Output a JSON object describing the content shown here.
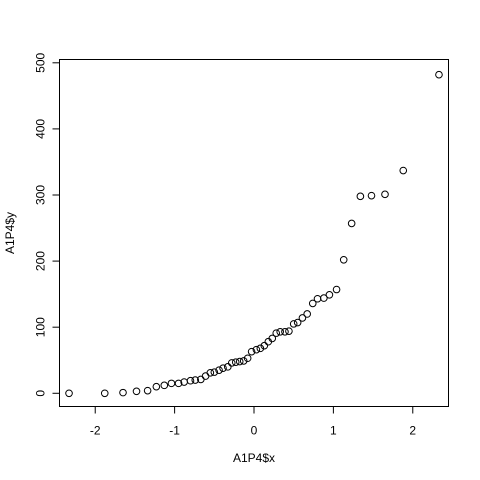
{
  "chart_data": {
    "type": "scatter",
    "title": "",
    "xlabel": "A1P4$x",
    "ylabel": "A1P4$y",
    "xlim": [
      -2.45,
      2.45
    ],
    "ylim": [
      -20,
      505
    ],
    "xticks": [
      -2,
      -1,
      0,
      1,
      2
    ],
    "xtick_labels": [
      "-2",
      "-1",
      "0",
      "1",
      "2"
    ],
    "yticks": [
      0,
      100,
      200,
      300,
      400,
      500
    ],
    "ytick_labels": [
      "0",
      "100",
      "200",
      "300",
      "400",
      "500"
    ],
    "grid": false,
    "points": [
      {
        "x": -2.33,
        "y": 0
      },
      {
        "x": -1.88,
        "y": 0
      },
      {
        "x": -1.65,
        "y": 1
      },
      {
        "x": -1.48,
        "y": 3
      },
      {
        "x": -1.34,
        "y": 4
      },
      {
        "x": -1.23,
        "y": 10
      },
      {
        "x": -1.13,
        "y": 12
      },
      {
        "x": -1.04,
        "y": 15
      },
      {
        "x": -0.95,
        "y": 15
      },
      {
        "x": -0.88,
        "y": 17
      },
      {
        "x": -0.8,
        "y": 19
      },
      {
        "x": -0.74,
        "y": 20
      },
      {
        "x": -0.67,
        "y": 21
      },
      {
        "x": -0.61,
        "y": 26
      },
      {
        "x": -0.55,
        "y": 31
      },
      {
        "x": -0.5,
        "y": 32
      },
      {
        "x": -0.44,
        "y": 35
      },
      {
        "x": -0.39,
        "y": 38
      },
      {
        "x": -0.33,
        "y": 40
      },
      {
        "x": -0.28,
        "y": 46
      },
      {
        "x": -0.23,
        "y": 47
      },
      {
        "x": -0.18,
        "y": 48
      },
      {
        "x": -0.13,
        "y": 49
      },
      {
        "x": -0.08,
        "y": 53
      },
      {
        "x": -0.03,
        "y": 63
      },
      {
        "x": 0.03,
        "y": 66
      },
      {
        "x": 0.08,
        "y": 68
      },
      {
        "x": 0.13,
        "y": 72
      },
      {
        "x": 0.18,
        "y": 78
      },
      {
        "x": 0.23,
        "y": 83
      },
      {
        "x": 0.28,
        "y": 91
      },
      {
        "x": 0.33,
        "y": 93
      },
      {
        "x": 0.39,
        "y": 93
      },
      {
        "x": 0.44,
        "y": 94
      },
      {
        "x": 0.5,
        "y": 105
      },
      {
        "x": 0.55,
        "y": 107
      },
      {
        "x": 0.61,
        "y": 114
      },
      {
        "x": 0.67,
        "y": 120
      },
      {
        "x": 0.74,
        "y": 136
      },
      {
        "x": 0.8,
        "y": 143
      },
      {
        "x": 0.88,
        "y": 144
      },
      {
        "x": 0.95,
        "y": 149
      },
      {
        "x": 1.04,
        "y": 157
      },
      {
        "x": 1.13,
        "y": 202
      },
      {
        "x": 1.23,
        "y": 257
      },
      {
        "x": 1.34,
        "y": 298
      },
      {
        "x": 1.48,
        "y": 299
      },
      {
        "x": 1.65,
        "y": 301
      },
      {
        "x": 1.88,
        "y": 337
      },
      {
        "x": 2.33,
        "y": 482
      }
    ]
  }
}
